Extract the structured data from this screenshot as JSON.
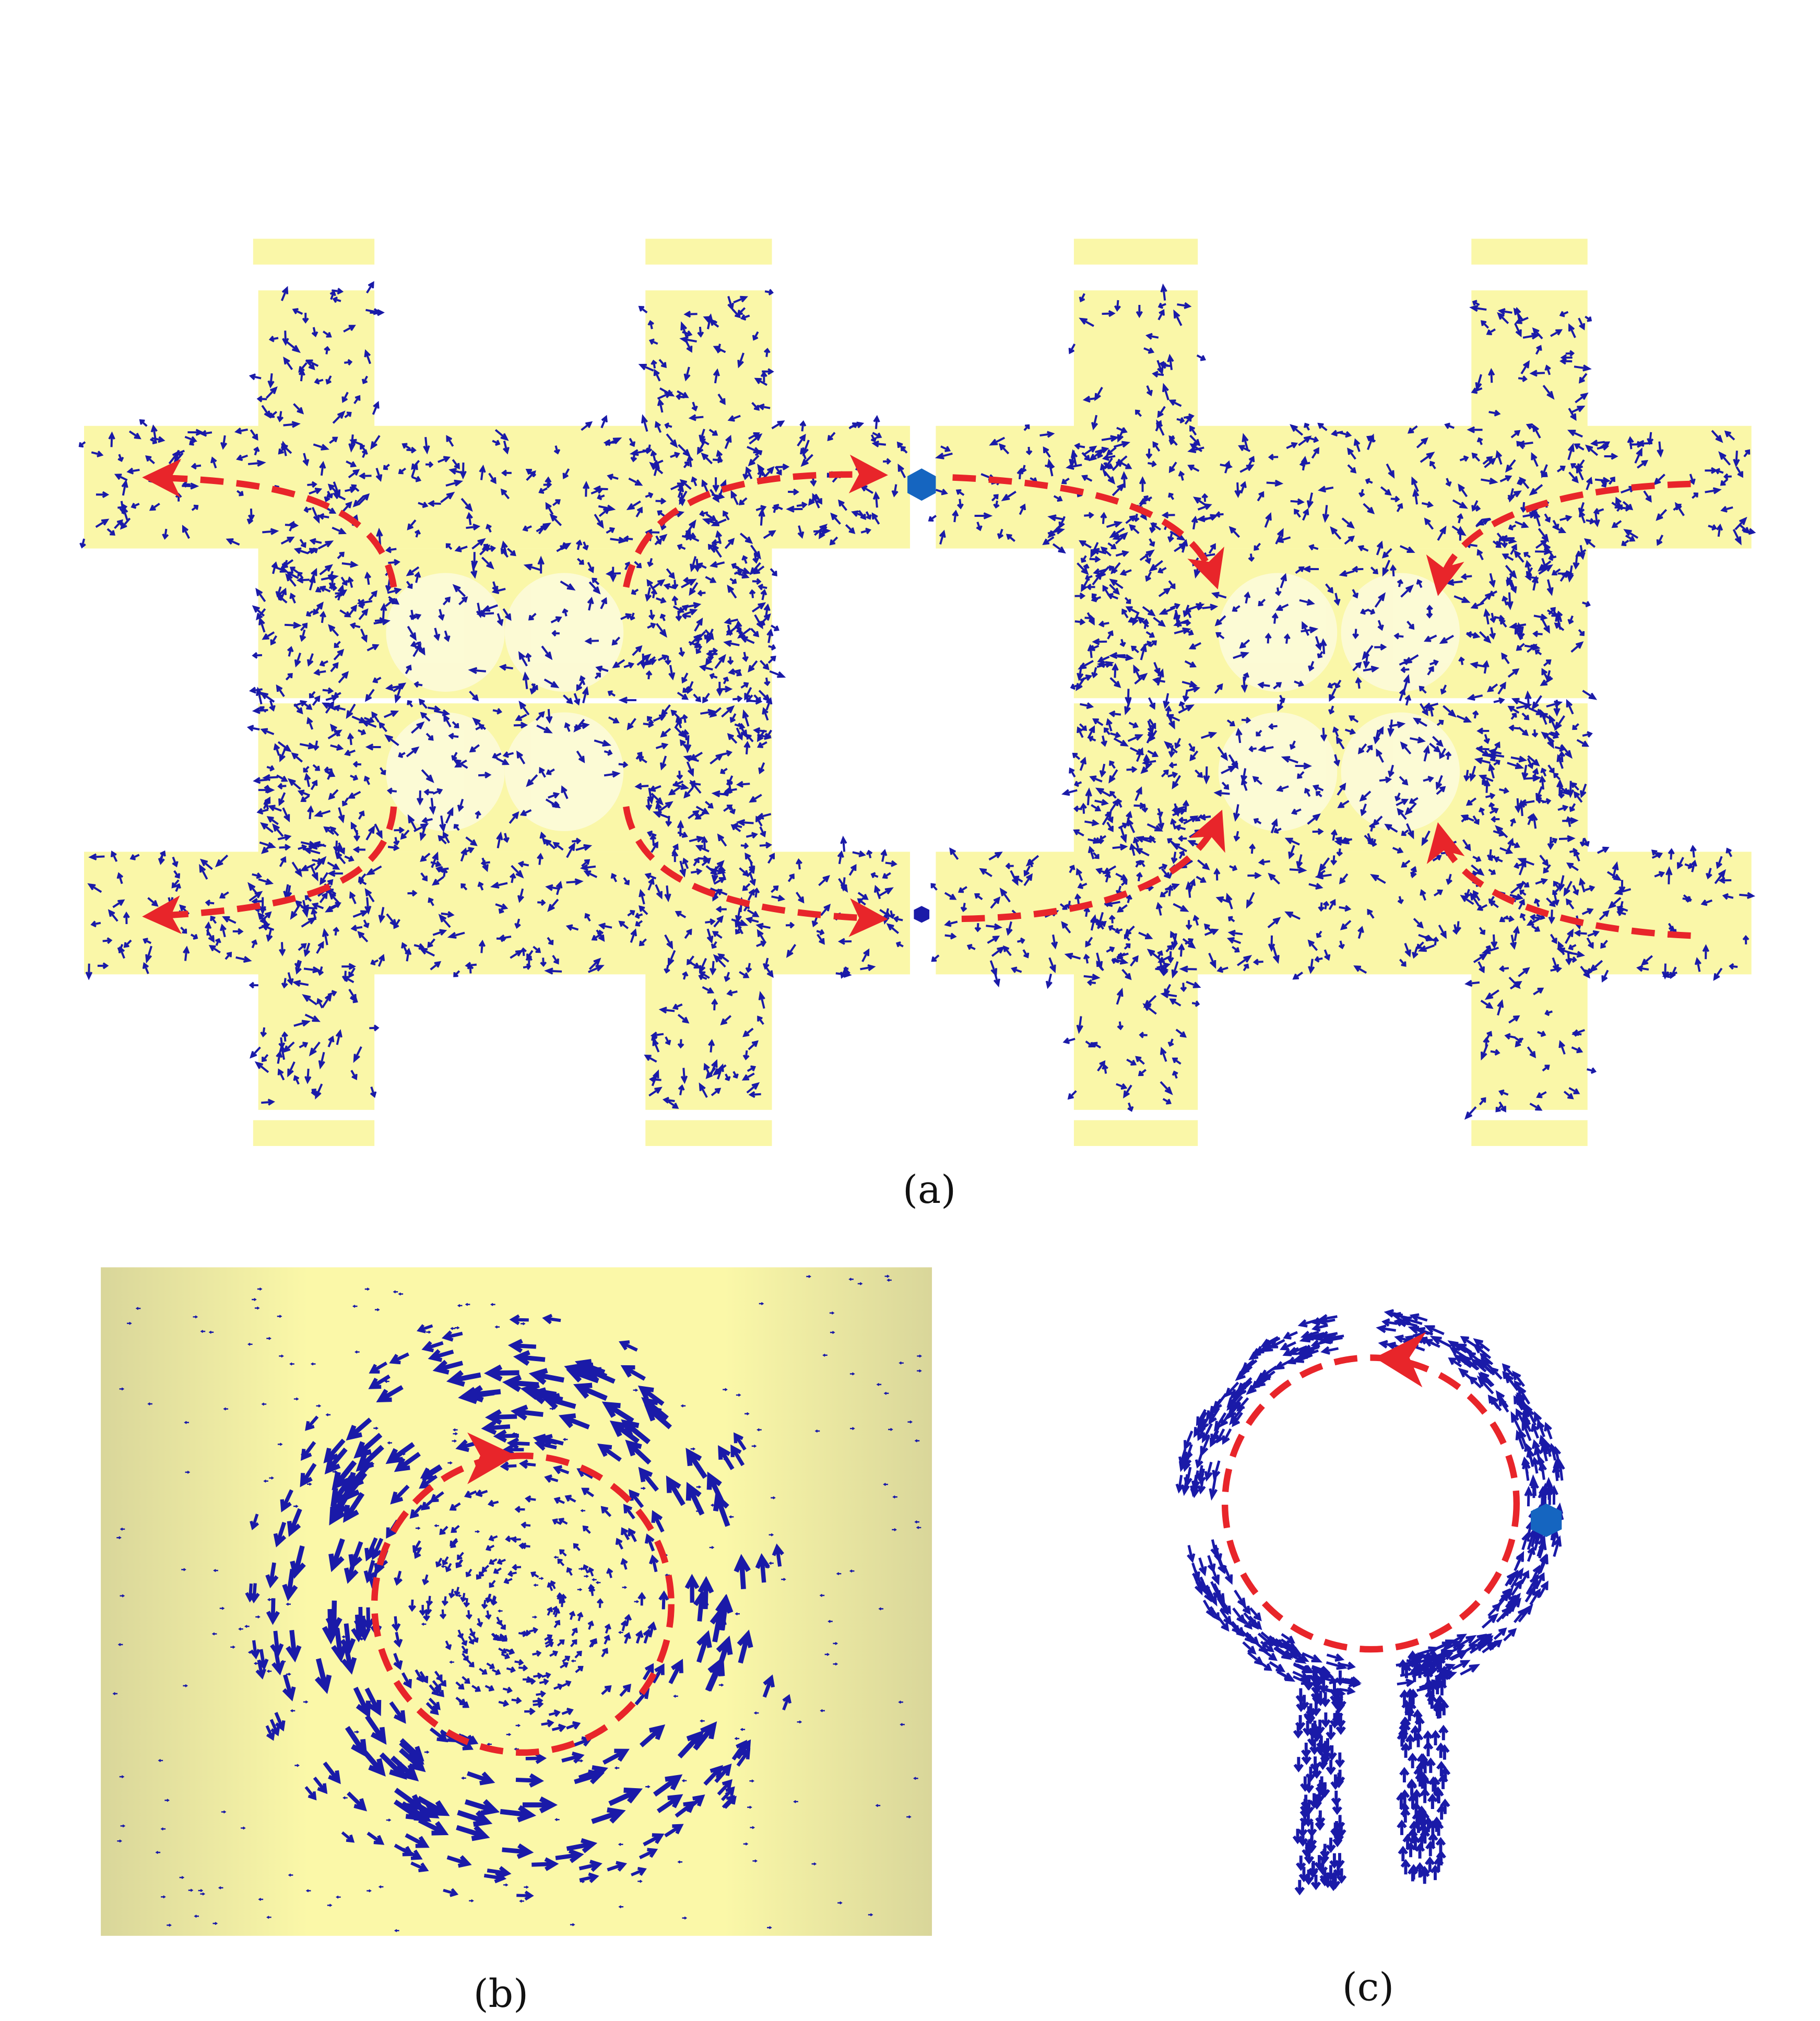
{
  "panels": [
    {
      "label": "(a)"
    },
    {
      "label": "(b)"
    },
    {
      "label": "(c)"
    }
  ],
  "colors": {
    "conductor": "#faf7a8",
    "current_vectors": "#1a1aa8",
    "current_path": "#e8252a",
    "port": "#1565c0"
  },
  "icons": [
    "current-vector-arrow",
    "current-path-arrow",
    "port-marker"
  ]
}
